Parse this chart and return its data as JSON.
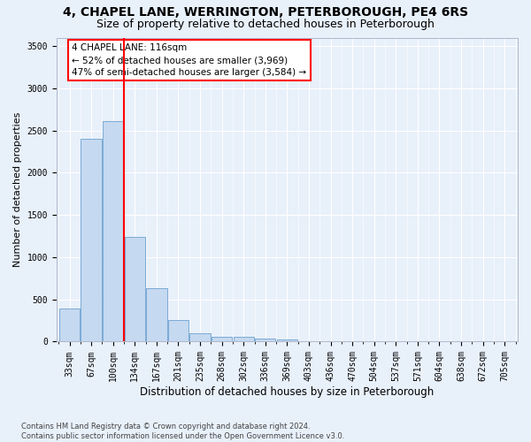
{
  "title1": "4, CHAPEL LANE, WERRINGTON, PETERBOROUGH, PE4 6RS",
  "title2": "Size of property relative to detached houses in Peterborough",
  "xlabel": "Distribution of detached houses by size in Peterborough",
  "ylabel": "Number of detached properties",
  "footnote": "Contains HM Land Registry data © Crown copyright and database right 2024.\nContains public sector information licensed under the Open Government Licence v3.0.",
  "categories": [
    "33sqm",
    "67sqm",
    "100sqm",
    "134sqm",
    "167sqm",
    "201sqm",
    "235sqm",
    "268sqm",
    "302sqm",
    "336sqm",
    "369sqm",
    "403sqm",
    "436sqm",
    "470sqm",
    "504sqm",
    "537sqm",
    "571sqm",
    "604sqm",
    "638sqm",
    "672sqm",
    "705sqm"
  ],
  "values": [
    390,
    2400,
    2610,
    1240,
    635,
    255,
    95,
    60,
    55,
    40,
    25,
    0,
    0,
    0,
    0,
    0,
    0,
    0,
    0,
    0,
    0
  ],
  "bar_color": "#c5d9f0",
  "bar_edge_color": "#6ca0d0",
  "vline_x": 2.5,
  "vline_color": "red",
  "vline_linewidth": 1.5,
  "annotation_box_text": "4 CHAPEL LANE: 116sqm\n← 52% of detached houses are smaller (3,969)\n47% of semi-detached houses are larger (3,584) →",
  "ylim": [
    0,
    3600
  ],
  "yticks": [
    0,
    500,
    1000,
    1500,
    2000,
    2500,
    3000,
    3500
  ],
  "bg_color": "#e8f0fa",
  "grid_color": "#ffffff",
  "title1_fontsize": 10,
  "title2_fontsize": 9,
  "xlabel_fontsize": 8.5,
  "ylabel_fontsize": 8,
  "tick_fontsize": 7,
  "annot_fontsize": 7.5
}
